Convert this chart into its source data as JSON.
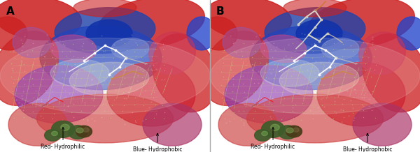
{
  "figsize": [
    6.0,
    2.18
  ],
  "dpi": 100,
  "panel_A": {
    "label": "A",
    "annotation_left_text": "Red- Hydrophilic",
    "annotation_right_text": "Blue- Hydrophobic"
  },
  "panel_B": {
    "label": "B",
    "annotation_left_text": "Red- Hydrophilic",
    "annotation_right_text": "Blue- Hydrophobic"
  },
  "bg_color": "#ffffff",
  "label_fontsize": 11,
  "annotation_fontsize": 5.5
}
